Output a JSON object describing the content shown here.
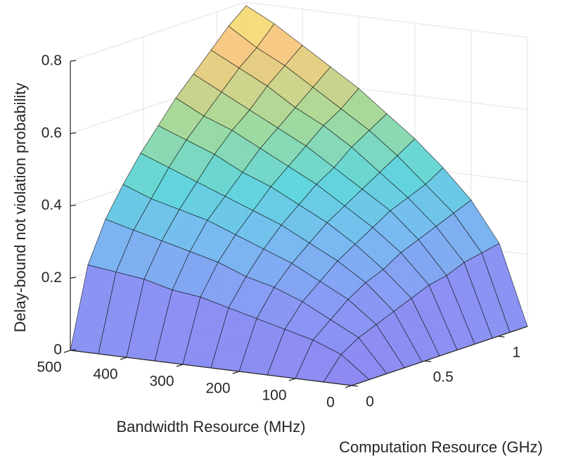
{
  "chart_data": {
    "type": "surface",
    "xlabel": "Computation Resource (GHz)",
    "ylabel": "Bandwidth Resource (MHz)",
    "zlabel": "Delay-bound not violation probability",
    "x": [
      0,
      0.12,
      0.24,
      0.36,
      0.48,
      0.6,
      0.72,
      0.84,
      0.96,
      1.08,
      1.2
    ],
    "y": [
      0,
      50,
      100,
      150,
      200,
      250,
      300,
      350,
      400,
      450,
      500
    ],
    "z": [
      [
        0,
        0,
        0,
        0,
        0,
        0,
        0,
        0,
        0,
        0,
        0
      ],
      [
        0,
        0.06,
        0.09,
        0.11,
        0.13,
        0.15,
        0.17,
        0.18,
        0.2,
        0.21,
        0.22
      ],
      [
        0,
        0.09,
        0.13,
        0.17,
        0.2,
        0.22,
        0.25,
        0.27,
        0.29,
        0.31,
        0.33
      ],
      [
        0,
        0.11,
        0.17,
        0.21,
        0.25,
        0.28,
        0.31,
        0.34,
        0.36,
        0.38,
        0.41
      ],
      [
        0,
        0.13,
        0.2,
        0.25,
        0.29,
        0.33,
        0.36,
        0.39,
        0.42,
        0.45,
        0.48
      ],
      [
        0,
        0.15,
        0.22,
        0.28,
        0.33,
        0.37,
        0.41,
        0.44,
        0.48,
        0.51,
        0.54
      ],
      [
        0,
        0.17,
        0.25,
        0.31,
        0.36,
        0.41,
        0.45,
        0.49,
        0.53,
        0.56,
        0.6
      ],
      [
        0,
        0.18,
        0.27,
        0.34,
        0.39,
        0.44,
        0.49,
        0.53,
        0.57,
        0.61,
        0.65
      ],
      [
        0,
        0.2,
        0.29,
        0.36,
        0.42,
        0.48,
        0.53,
        0.57,
        0.62,
        0.66,
        0.7
      ],
      [
        0,
        0.21,
        0.31,
        0.38,
        0.45,
        0.51,
        0.56,
        0.61,
        0.66,
        0.7,
        0.75
      ],
      [
        0,
        0.22,
        0.33,
        0.41,
        0.48,
        0.54,
        0.6,
        0.65,
        0.7,
        0.75,
        0.79
      ]
    ],
    "xlim": [
      0,
      1.2
    ],
    "xticks": [
      0,
      0.5,
      1
    ],
    "ylim": [
      0,
      500
    ],
    "yticks": [
      0,
      100,
      200,
      300,
      400,
      500
    ],
    "zlim": [
      0,
      0.8
    ],
    "zticks": [
      0,
      0.2,
      0.4,
      0.6,
      0.8
    ],
    "grid": true
  }
}
